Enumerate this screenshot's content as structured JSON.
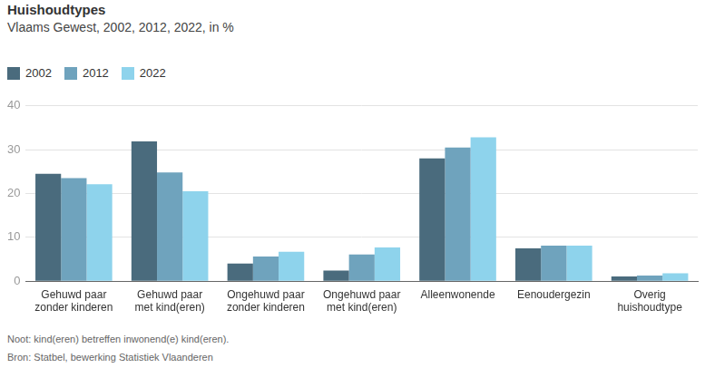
{
  "chart_data": {
    "type": "bar",
    "title": "Huishoudtypes",
    "subtitle": "Vlaams Gewest, 2002, 2012, 2022, in %",
    "categories": [
      "Gehuwd paar zonder kinderen",
      "Gehuwd paar met kind(eren)",
      "Ongehuwd paar zonder kinderen",
      "Ongehuwd paar met kind(eren)",
      "Alleenwonende",
      "Eenoudergezin",
      "Overig huishoudtype"
    ],
    "series": [
      {
        "name": "2002",
        "color": "#4a6b7d",
        "values": [
          24.5,
          31.9,
          4.0,
          2.4,
          28.0,
          7.5,
          1.1
        ]
      },
      {
        "name": "2012",
        "color": "#6fa3bd",
        "values": [
          23.5,
          24.8,
          5.6,
          6.1,
          30.5,
          8.1,
          1.3
        ]
      },
      {
        "name": "2022",
        "color": "#8ed3ec",
        "values": [
          22.1,
          20.5,
          6.7,
          7.7,
          32.8,
          8.1,
          1.8
        ]
      }
    ],
    "ylim": [
      0,
      40
    ],
    "yticks": [
      0,
      10,
      20,
      30,
      40
    ],
    "grid": true,
    "legend": "top-left",
    "note": "Noot: kind(eren) betreffen inwonend(e) kind(eren).",
    "source": "Bron: Statbel, bewerking Statistiek Vlaanderen"
  }
}
